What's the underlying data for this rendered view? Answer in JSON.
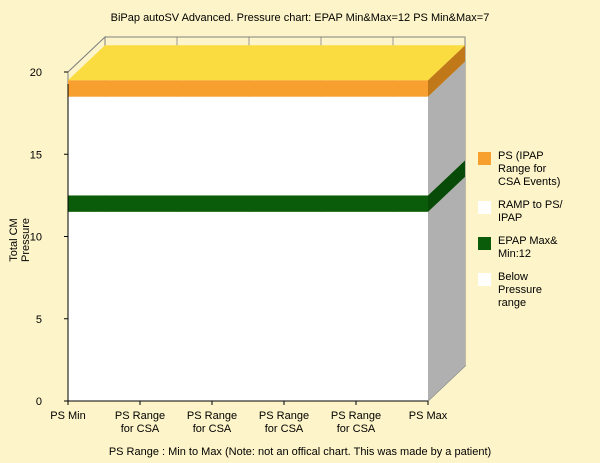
{
  "chart_data": {
    "type": "area",
    "title": "BiPap autoSV Advanced. Pressure chart: EPAP Min&Max=12  PS Min&Max=7",
    "xlabel": "PS Range : Min to Max   (Note: not an offical chart. This was made by a patient)",
    "ylabel": [
      "Total CM",
      "Pressure"
    ],
    "categories": [
      [
        "PS Min"
      ],
      [
        "PS Range",
        "for CSA"
      ],
      [
        "PS Range",
        "for CSA"
      ],
      [
        "PS Range",
        "for CSA"
      ],
      [
        "PS Range",
        "for CSA"
      ],
      [
        "PS Max"
      ]
    ],
    "ylim": [
      0,
      20
    ],
    "yticks": [
      "0",
      "5",
      "10",
      "15",
      "20"
    ],
    "stacked": true,
    "grid": true,
    "legend_position": "right",
    "series": [
      {
        "name": "Below Pressure range",
        "values": [
          11.5,
          11.5,
          11.5,
          11.5,
          11.5,
          11.5
        ],
        "color": "#ffffff"
      },
      {
        "name": "EPAP Max& Min:12",
        "values": [
          1,
          1,
          1,
          1,
          1,
          1
        ],
        "color": "#0a5c0a"
      },
      {
        "name": "RAMP to PS/ IPAP",
        "values": [
          6,
          6,
          6,
          6,
          6,
          6
        ],
        "color": "#ffffff"
      },
      {
        "name": "PS (IPAP Range for CSA Events)",
        "values": [
          1,
          1,
          1,
          1,
          1,
          1
        ],
        "color": "#f7a030"
      }
    ],
    "colors": {
      "background": "#fdf5c9",
      "top_face": "#fbdc40",
      "side_wall": "#b0b0b0",
      "grid": "#808080"
    }
  },
  "legend": {
    "items": [
      {
        "lines": [
          "PS (IPAP",
          "Range for",
          "CSA Events)"
        ],
        "color": "#f7a030",
        "icon": "orange-square"
      },
      {
        "lines": [
          "RAMP to PS/",
          "IPAP"
        ],
        "color": "#ffffff",
        "icon": "white-square"
      },
      {
        "lines": [
          "EPAP Max&",
          "Min:12"
        ],
        "color": "#0a5c0a",
        "icon": "green-square"
      },
      {
        "lines": [
          "Below",
          "Pressure",
          "range"
        ],
        "color": "#ffffff",
        "icon": "white-square"
      }
    ]
  }
}
